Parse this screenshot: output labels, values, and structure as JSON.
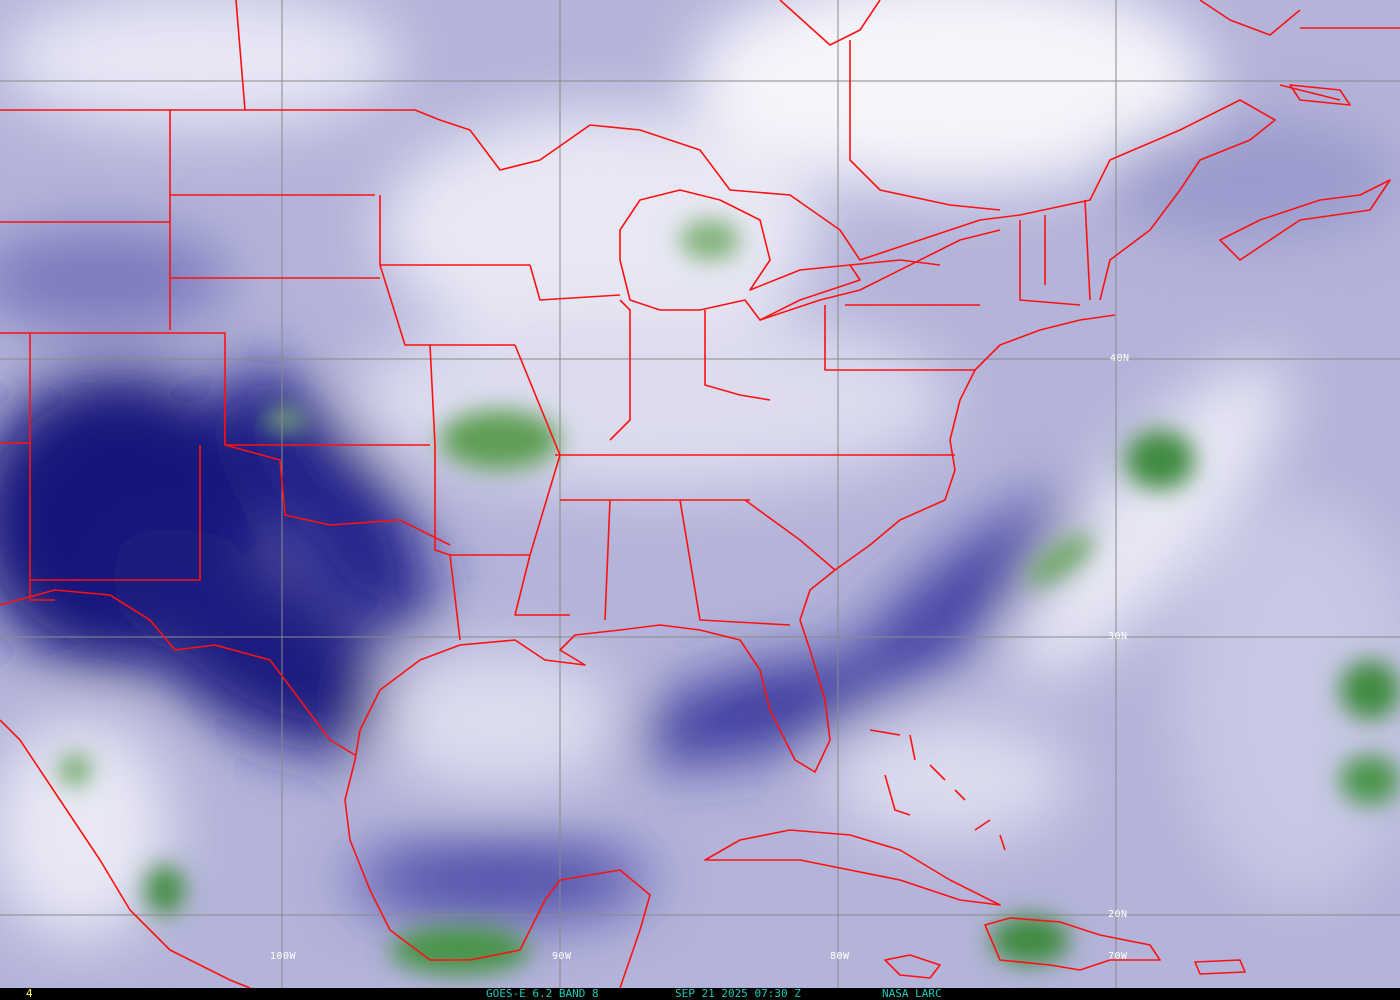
{
  "image": {
    "type": "satellite water vapor imagery",
    "colors": {
      "dry": "#0a0a6e",
      "mid": "#a8a8d4",
      "moist": "#f2f2f8",
      "cloud": "#3f8f3f",
      "borders": "#ff0000",
      "grid": "#808080"
    }
  },
  "grid_labels": {
    "lat": [
      "40N",
      "30N",
      "20N"
    ],
    "lon": [
      "100W",
      "90W",
      "80W",
      "70W"
    ]
  },
  "footer": {
    "frame": "4",
    "satellite": "GOES-E 6.2 BAND 8",
    "datetime": "SEP 21 2025 07:30 Z",
    "source": "NASA LARC"
  }
}
